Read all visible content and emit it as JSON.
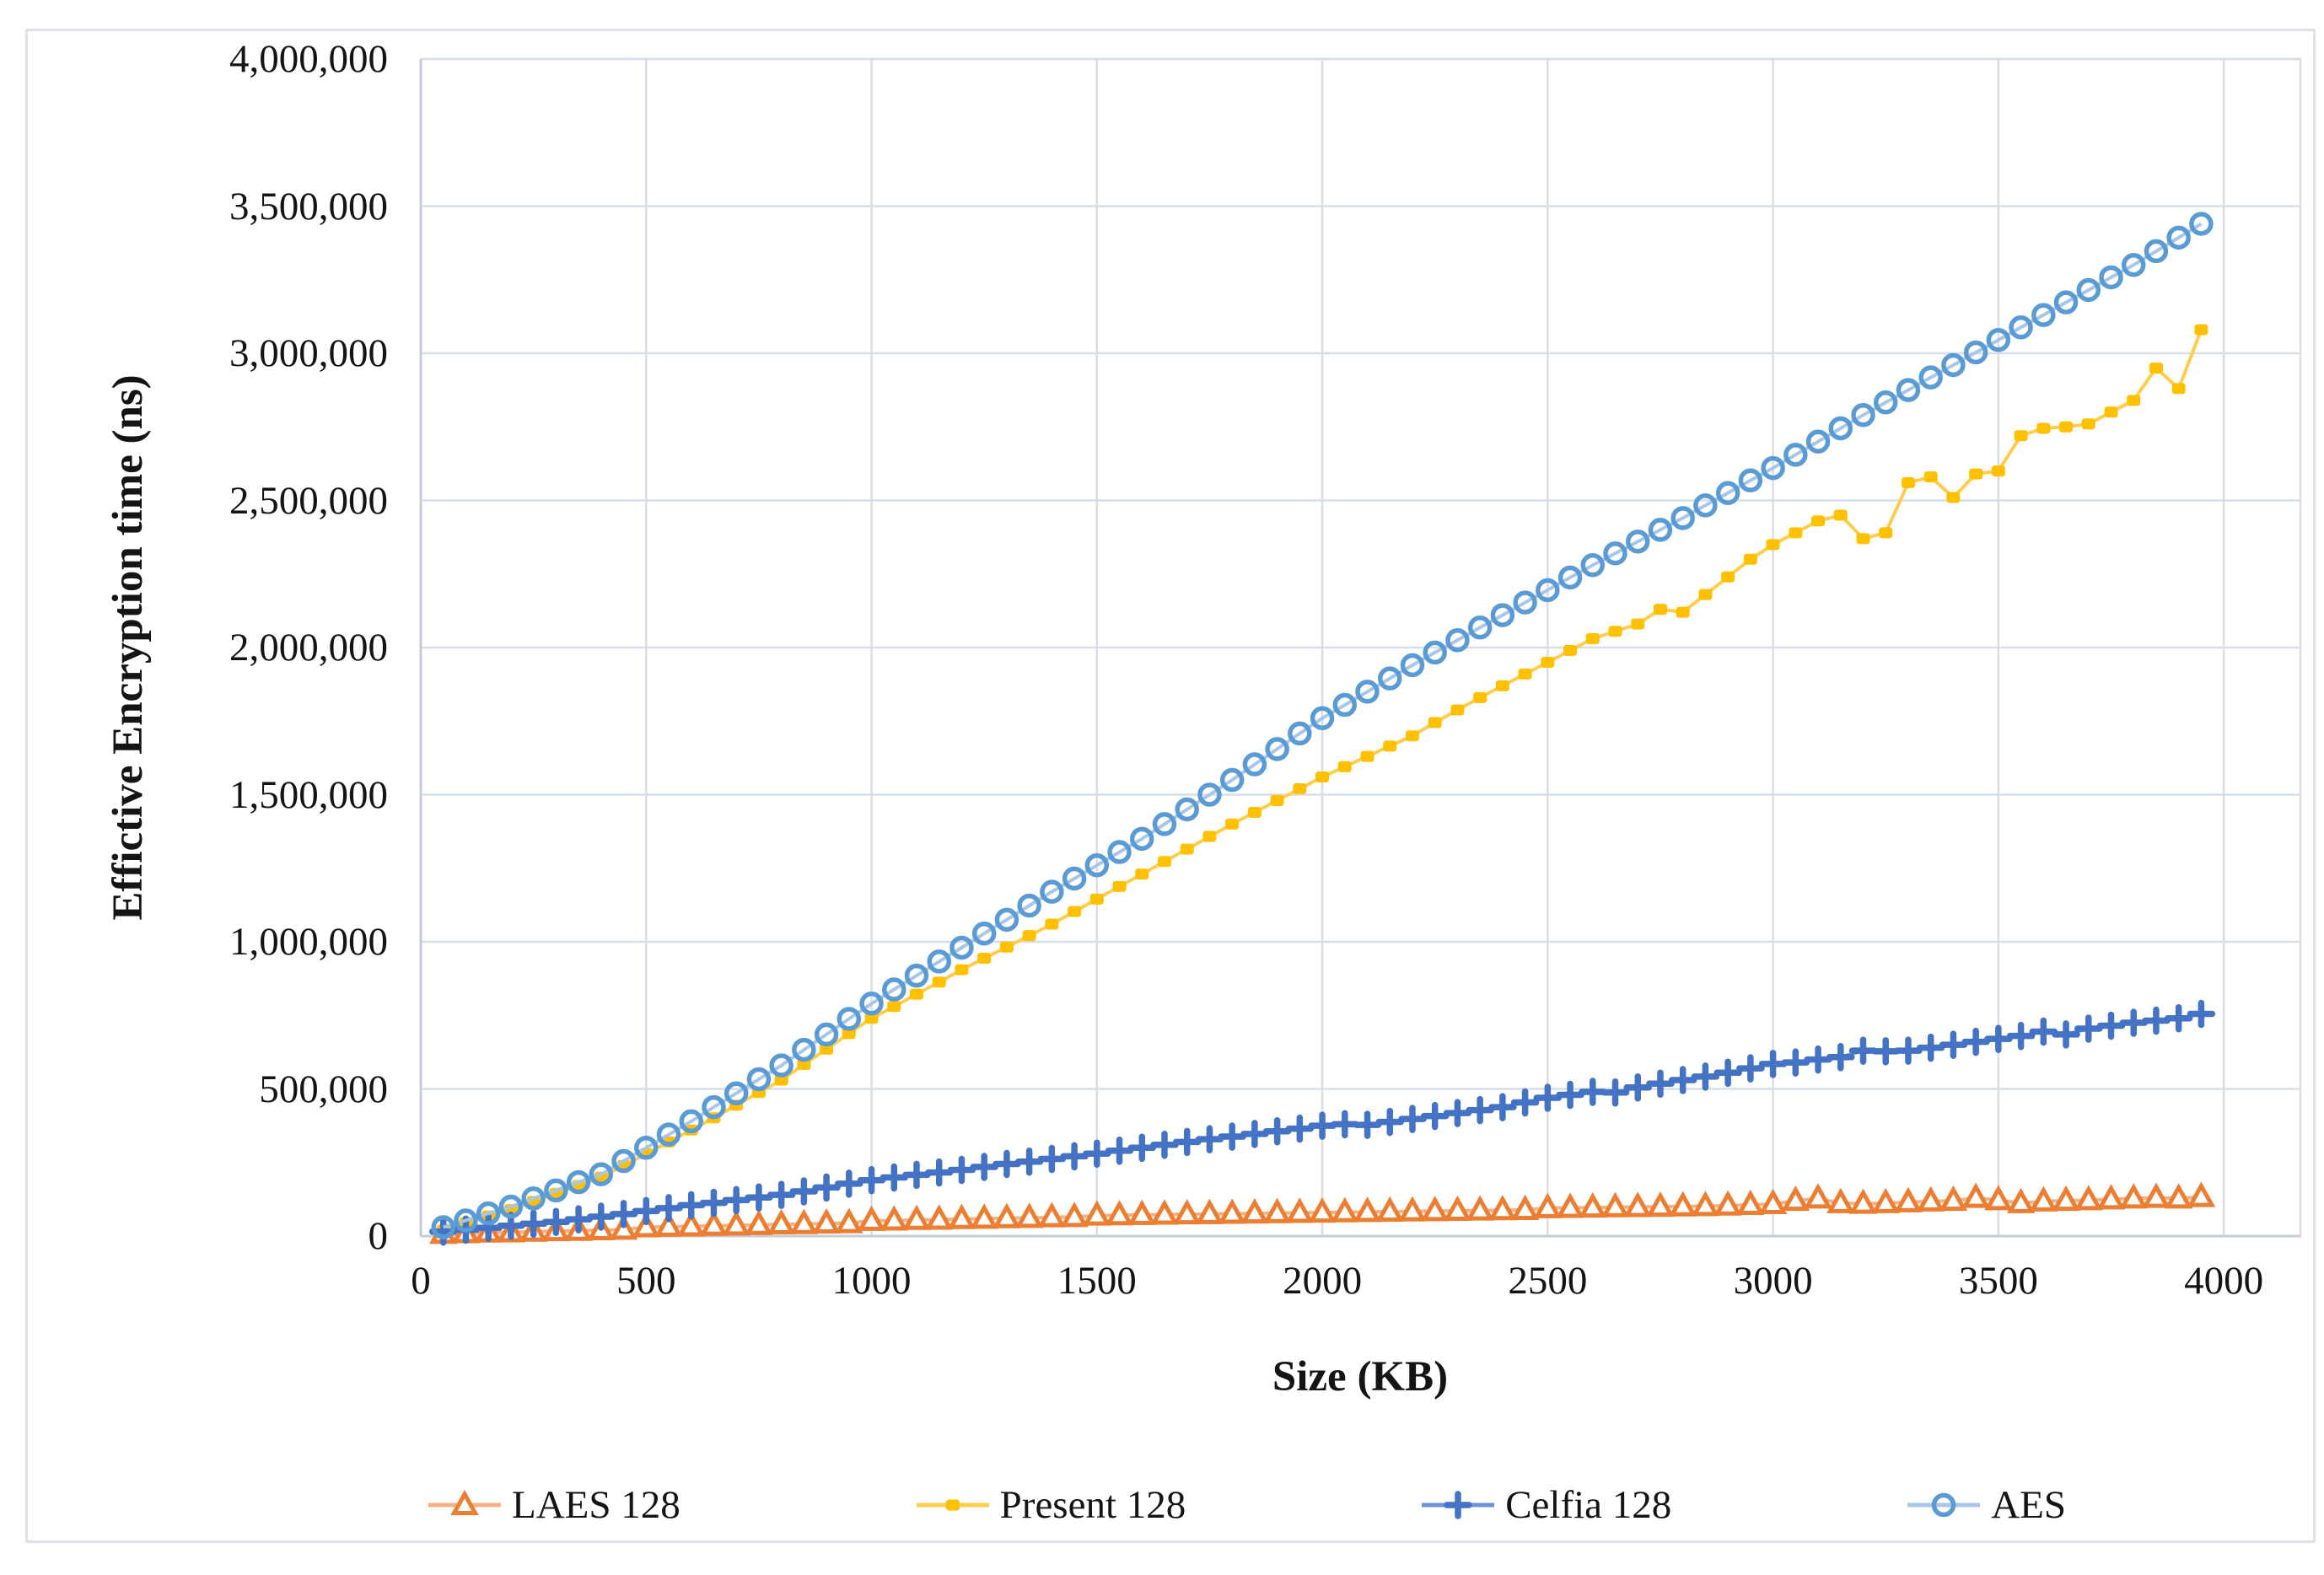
{
  "figure": {
    "x_axis_title": "Size (KB)",
    "y_axis_title": "Effictive Encryption time (ns)"
  },
  "chart_data": {
    "type": "line",
    "title": "",
    "xlabel": "Size (KB)",
    "ylabel": "Effictive Encryption time (ns)",
    "grid": true,
    "legend_position": "bottom",
    "xlim": [
      0,
      4170
    ],
    "ylim": [
      0,
      4000000
    ],
    "x_tick_values": [
      0,
      500,
      1000,
      1500,
      2000,
      2500,
      3000,
      3500,
      4000
    ],
    "x_tick_labels": [
      "0",
      "500",
      "1000",
      "1500",
      "2000",
      "2500",
      "3000",
      "3500",
      "4000"
    ],
    "y_tick_values": [
      0,
      500000,
      1000000,
      1500000,
      2000000,
      2500000,
      3000000,
      3500000,
      4000000
    ],
    "y_tick_labels": [
      "0",
      "500,000",
      "1,000,000",
      "1,500,000",
      "2,000,000",
      "2,500,000",
      "3,000,000",
      "3,500,000",
      "4,000,000"
    ],
    "x_start": 50,
    "x_step": 50,
    "x": [
      50,
      100,
      150,
      200,
      250,
      300,
      350,
      400,
      450,
      500,
      550,
      600,
      650,
      700,
      750,
      800,
      850,
      900,
      950,
      1000,
      1050,
      1100,
      1150,
      1200,
      1250,
      1300,
      1350,
      1400,
      1450,
      1500,
      1550,
      1600,
      1650,
      1700,
      1750,
      1800,
      1850,
      1900,
      1950,
      2000,
      2050,
      2100,
      2150,
      2200,
      2250,
      2300,
      2350,
      2400,
      2450,
      2500,
      2550,
      2600,
      2650,
      2700,
      2750,
      2800,
      2850,
      2900,
      2950,
      3000,
      3050,
      3100,
      3150,
      3200,
      3250,
      3300,
      3350,
      3400,
      3450,
      3500,
      3550,
      3600,
      3650,
      3700,
      3750,
      3800,
      3850,
      3900,
      3950
    ],
    "series": [
      {
        "name": "LAES 128",
        "marker": "triangle-open",
        "color": "#ED7D31",
        "line_color": "#F5B183",
        "values": [
          8000,
          10000,
          12000,
          13000,
          15000,
          17000,
          18000,
          20000,
          22000,
          30000,
          32000,
          33000,
          35000,
          36000,
          38000,
          40000,
          41000,
          43000,
          44000,
          52000,
          53000,
          55000,
          56000,
          58000,
          59000,
          61000,
          62000,
          64000,
          65000,
          70000,
          71000,
          72000,
          73000,
          74000,
          75000,
          76000,
          77000,
          78000,
          79000,
          80000,
          81000,
          82000,
          83000,
          84000,
          85000,
          86000,
          87000,
          88000,
          89000,
          95000,
          96000,
          97000,
          98000,
          99000,
          100000,
          101000,
          102000,
          104000,
          106000,
          109000,
          120000,
          128000,
          112000,
          110000,
          112000,
          115000,
          118000,
          120000,
          130000,
          122000,
          112000,
          118000,
          120000,
          122000,
          125000,
          128000,
          130000,
          128000,
          133000
        ]
      },
      {
        "name": "Present 128",
        "marker": "square",
        "color": "#FFC000",
        "line_color": "#FFCD4D",
        "values": [
          20000,
          45000,
          68000,
          90000,
          118000,
          145000,
          172000,
          200000,
          240000,
          280000,
          320000,
          360000,
          402000,
          445000,
          488000,
          530000,
          583000,
          635000,
          688000,
          740000,
          780000,
          822000,
          863000,
          905000,
          944000,
          982000,
          1021000,
          1060000,
          1103000,
          1145000,
          1188000,
          1230000,
          1273000,
          1315000,
          1358000,
          1400000,
          1440000,
          1480000,
          1520000,
          1560000,
          1595000,
          1630000,
          1665000,
          1700000,
          1745000,
          1788000,
          1830000,
          1870000,
          1910000,
          1950000,
          1990000,
          2030000,
          2055000,
          2080000,
          2130000,
          2120000,
          2180000,
          2240000,
          2300000,
          2350000,
          2390000,
          2430000,
          2450000,
          2370000,
          2390000,
          2560000,
          2580000,
          2510000,
          2590000,
          2600000,
          2720000,
          2745000,
          2750000,
          2760000,
          2800000,
          2840000,
          2950000,
          2880000,
          3080000
        ]
      },
      {
        "name": "Celfia 128",
        "marker": "plus",
        "color": "#4472C4",
        "line_color": "#6E93D6",
        "values": [
          15000,
          22000,
          28000,
          35000,
          42000,
          48000,
          57000,
          66000,
          75000,
          85000,
          95000,
          105000,
          113000,
          122000,
          131000,
          140000,
          152000,
          165000,
          178000,
          190000,
          199000,
          208000,
          216000,
          225000,
          235000,
          245000,
          253000,
          262000,
          271000,
          280000,
          290000,
          300000,
          310000,
          320000,
          329000,
          338000,
          347000,
          356000,
          365000,
          375000,
          380000,
          378000,
          388000,
          398000,
          408000,
          418000,
          428000,
          438000,
          454000,
          470000,
          480000,
          490000,
          488000,
          505000,
          518000,
          530000,
          542000,
          555000,
          570000,
          585000,
          590000,
          600000,
          608000,
          630000,
          628000,
          630000,
          640000,
          650000,
          660000,
          670000,
          680000,
          695000,
          685000,
          705000,
          715000,
          725000,
          732000,
          740000,
          755000
        ]
      },
      {
        "name": "AES",
        "marker": "circle-open",
        "color": "#5B9BD5",
        "line_color": "#A9C6E8",
        "values": [
          30000,
          53000,
          77000,
          100000,
          128000,
          155000,
          183000,
          210000,
          255000,
          300000,
          345000,
          390000,
          438000,
          485000,
          533000,
          580000,
          633000,
          685000,
          738000,
          790000,
          838000,
          885000,
          933000,
          980000,
          1028000,
          1075000,
          1123000,
          1170000,
          1215000,
          1260000,
          1305000,
          1350000,
          1400000,
          1450000,
          1500000,
          1550000,
          1603000,
          1655000,
          1708000,
          1760000,
          1805000,
          1850000,
          1895000,
          1940000,
          1983000,
          2025000,
          2068000,
          2110000,
          2153000,
          2195000,
          2238000,
          2280000,
          2320000,
          2360000,
          2400000,
          2440000,
          2483000,
          2525000,
          2568000,
          2610000,
          2655000,
          2700000,
          2745000,
          2790000,
          2833000,
          2875000,
          2918000,
          2960000,
          3003000,
          3045000,
          3088000,
          3130000,
          3173000,
          3215000,
          3258000,
          3300000,
          3347000,
          3393000,
          3440000
        ]
      }
    ],
    "colors": {
      "gridline": "#d8dee8",
      "axis_line": "#c6cdd8",
      "text": "#141414",
      "background": "#ffffff"
    }
  }
}
